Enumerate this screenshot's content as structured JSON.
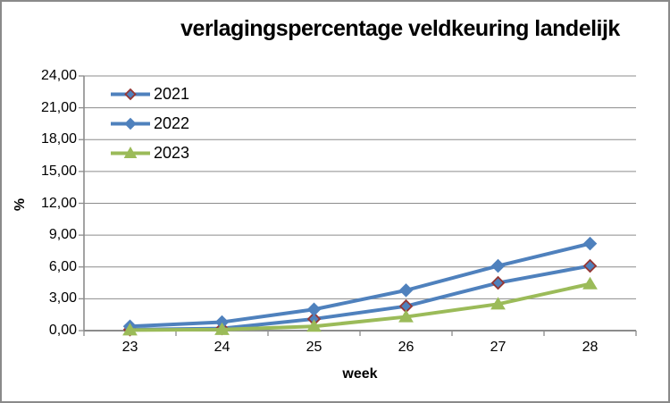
{
  "chart_data": {
    "type": "line",
    "title": "verlagingspercentage veldkeuring landelijk",
    "xlabel": "week",
    "ylabel": "%",
    "categories": [
      23,
      24,
      25,
      26,
      27,
      28
    ],
    "x_tick_labels": [
      "23",
      "24",
      "25",
      "26",
      "27",
      "28"
    ],
    "y_tick_labels": [
      "0,00",
      "3,00",
      "6,00",
      "9,00",
      "12,00",
      "15,00",
      "18,00",
      "21,00",
      "24,00"
    ],
    "ylim": [
      0,
      24
    ],
    "y_step": 3,
    "grid": true,
    "legend_position": "top-left-inside",
    "series": [
      {
        "name": "2021",
        "marker": "diamond",
        "line_color": "#4F81BD",
        "marker_fill": "#4F81BD",
        "marker_stroke": "#953735",
        "values": [
          0.1,
          0.2,
          1.1,
          2.3,
          4.5,
          6.1
        ]
      },
      {
        "name": "2022",
        "marker": "diamond",
        "line_color": "#4F81BD",
        "marker_fill": "#4F81BD",
        "marker_stroke": "#4F81BD",
        "values": [
          0.4,
          0.8,
          2.0,
          3.8,
          6.1,
          8.2
        ]
      },
      {
        "name": "2023",
        "marker": "triangle",
        "line_color": "#9BBB59",
        "marker_fill": "#9BBB59",
        "marker_stroke": "#9BBB59",
        "values": [
          0.05,
          0.1,
          0.4,
          1.3,
          2.5,
          4.4
        ]
      }
    ],
    "colors": {
      "background": "#ffffff",
      "chart_border": "#8a8a8a",
      "axis": "#8c8c8c",
      "gridline": "#8c8c8c",
      "text": "#000000"
    }
  }
}
